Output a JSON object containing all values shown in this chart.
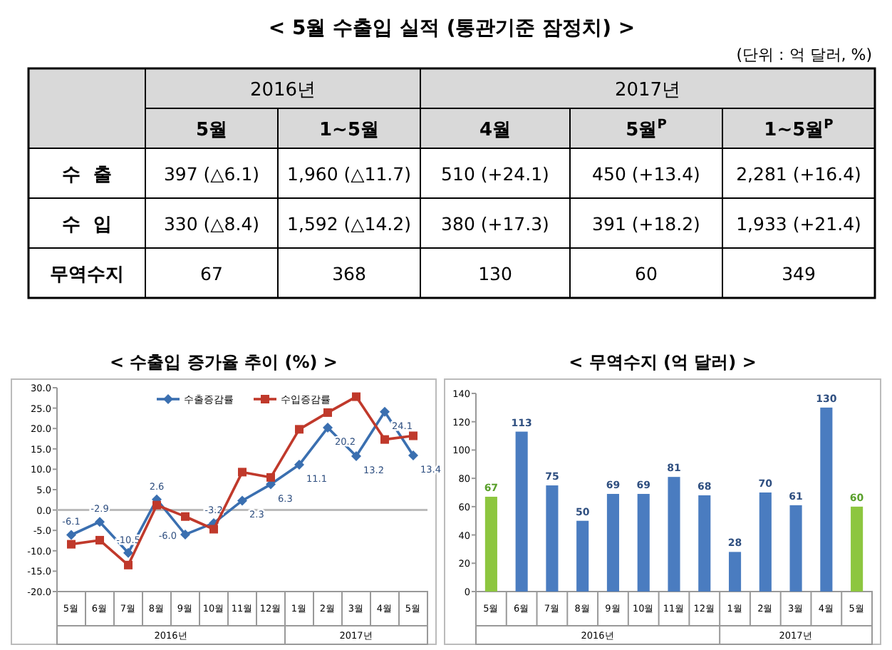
{
  "chart_data": [
    {
      "type": "other",
      "title": "< 5월 수출입 실적 (통관기준 잠정치) >",
      "subtitle": "(단위 : 억 달러, %)",
      "annotations": [
        "2016년",
        "2017년"
      ],
      "categories": [
        "5월",
        "1~5월",
        "4월",
        "5월$^{P}$",
        "1~5월$^{P}$"
      ],
      "y_categories": [
        "수  출",
        "수  입",
        "무역수지"
      ],
      "cell_labels": [
        [
          "397 (△6.1)",
          "1,960 (△11.7)",
          "510 (+24.1)",
          "450 (+13.4)",
          "2,281 (+16.4)"
        ],
        [
          "330 (△8.4)",
          "1,592 (△14.2)",
          "380 (+17.3)",
          "391 (+18.2)",
          "1,933 (+21.4)"
        ],
        [
          "67",
          "368",
          "130",
          "60",
          "349"
        ]
      ]
    },
    {
      "type": "line",
      "title": "< 수출입 증가율 추이 (%) >",
      "annotations": [
        "2016년",
        "2017년"
      ],
      "categories": [
        "5월",
        "6월",
        "7월",
        "8월",
        "9월",
        "10월",
        "11월",
        "12월",
        "1월",
        "2월",
        "3월",
        "4월",
        "5월"
      ],
      "ylim": [
        -20,
        30
      ],
      "yticks": [
        {
          "value": -20,
          "label": "-20.0"
        },
        {
          "value": -15,
          "label": "-15.0"
        },
        {
          "value": -10,
          "label": "-10.0"
        },
        {
          "value": -5,
          "label": "-5.0"
        },
        {
          "value": 0,
          "label": "0.0"
        },
        {
          "value": 5,
          "label": "5.0"
        },
        {
          "value": 10,
          "label": "10.0"
        },
        {
          "value": 15,
          "label": "15.0"
        },
        {
          "value": 20,
          "label": "20.0"
        },
        {
          "value": 25,
          "label": "25.0"
        },
        {
          "value": 30,
          "label": "30.0"
        }
      ],
      "legend": "top",
      "series": [
        {
          "name": "수출증감률",
          "color": "#3a6fb0",
          "marker": "diamond",
          "values": [
            -6.1,
            -2.9,
            -10.5,
            2.6,
            -6.0,
            -3.2,
            2.3,
            6.3,
            11.1,
            20.2,
            13.2,
            24.1,
            13.4
          ],
          "value_labels": [
            "-6.1",
            "-2.9",
            "-10.5",
            "2.6",
            "-6.0",
            "-3.2",
            "2.3",
            "6.3",
            "11.1",
            "20.2",
            "13.2",
            "24.1",
            "13.4"
          ]
        },
        {
          "name": "수입증감률",
          "color": "#c0392b",
          "marker": "square",
          "values": [
            -8.4,
            -7.4,
            -13.5,
            1.2,
            -1.6,
            -4.7,
            9.3,
            8.0,
            19.8,
            23.9,
            27.8,
            17.3,
            18.2
          ]
        }
      ]
    },
    {
      "type": "bar",
      "title": "< 무역수지 (억 달러) >",
      "annotations": [
        "2016년",
        "2017년"
      ],
      "categories": [
        "5월",
        "6월",
        "7월",
        "8월",
        "9월",
        "10월",
        "11월",
        "12월",
        "1월",
        "2월",
        "3월",
        "4월",
        "5월"
      ],
      "values": [
        67,
        113,
        75,
        50,
        69,
        69,
        81,
        68,
        28,
        70,
        61,
        130,
        60
      ],
      "colors": [
        "#8dc63f",
        "#4a7cc0",
        "#4a7cc0",
        "#4a7cc0",
        "#4a7cc0",
        "#4a7cc0",
        "#4a7cc0",
        "#4a7cc0",
        "#4a7cc0",
        "#4a7cc0",
        "#4a7cc0",
        "#4a7cc0",
        "#8dc63f"
      ],
      "ylim": [
        0,
        140
      ],
      "yticks": [
        0,
        20,
        40,
        60,
        80,
        100,
        120,
        140
      ],
      "data_labels": true
    }
  ]
}
